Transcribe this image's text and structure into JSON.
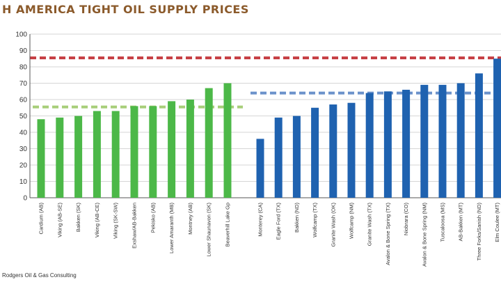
{
  "chart_data": {
    "type": "bar",
    "title": "H AMERICA TIGHT OIL SUPPLY PRICES",
    "source": "Rodgers Oil & Gas Consulting",
    "ylim": [
      0,
      100
    ],
    "yticks": [
      0,
      10,
      20,
      30,
      40,
      50,
      60,
      70,
      80,
      90,
      100
    ],
    "grid": true,
    "groups": [
      {
        "color": "#4cb848",
        "categories": [
          "Cardium (AB)",
          "Viking (AB-SE)",
          "Bakken (SK)",
          "Viking (AB-CE)",
          "Viking (SK-SW)",
          "Exshaw/AB-Bakken",
          "Pekisko (AB)",
          "Lower Amaranth (MB)",
          "Montney (AB)",
          "Lower Shaunavon (SK)",
          "Beaverhill Lake Gp"
        ],
        "values": [
          48,
          49,
          50,
          53,
          53,
          56,
          56,
          59,
          60,
          67,
          70
        ]
      },
      {
        "color": "#1f62b0",
        "categories": [
          "Monterey (CA)",
          "Eagle Ford (TX)",
          "Bakken (ND)",
          "Wolfcamp (TX)",
          "Granite Wash (OK)",
          "Wolfcamp (NM)",
          "Granite Wash (TX)",
          "Avalon & Bone Spring (TX)",
          "Niobrara (CO)",
          "Avalon & Bone Spring (NM)",
          "Tuscaloosa (MS)",
          "AB-Bakken (MT)",
          "Three Forks/Sanish (ND)",
          "Elm Coulee (MT)"
        ],
        "values": [
          36,
          49,
          50,
          55,
          57,
          58,
          64,
          65,
          66,
          69,
          69,
          70,
          76,
          85
        ]
      }
    ],
    "reference_lines": [
      {
        "value": 85.5,
        "color": "#c0282e"
      },
      {
        "value": 64,
        "color": "#5b86c5"
      },
      {
        "value": 55.5,
        "color": "#9dc96a"
      }
    ]
  }
}
